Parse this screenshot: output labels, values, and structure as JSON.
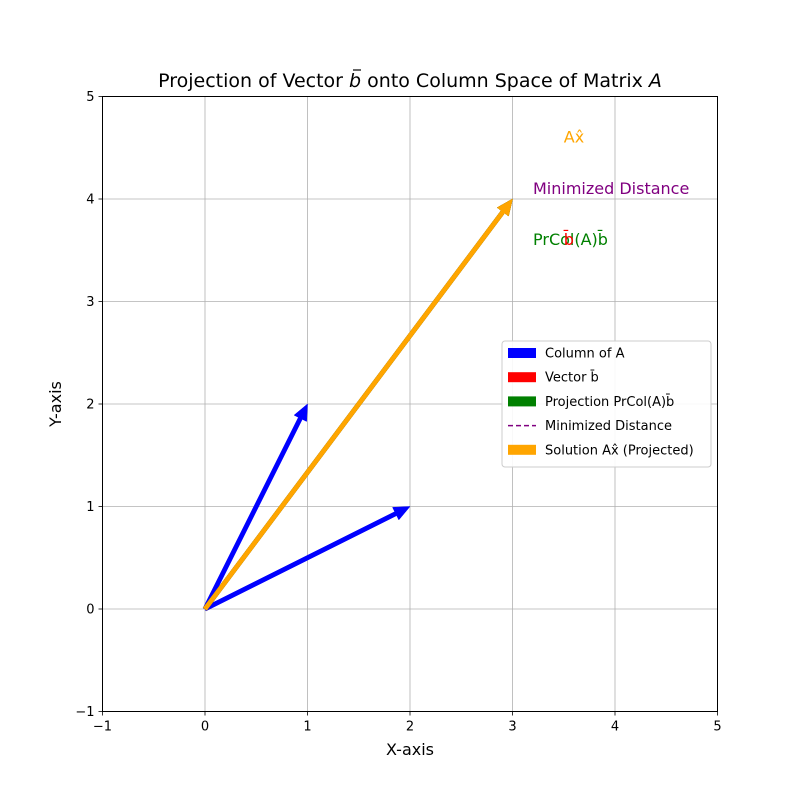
{
  "chart_data": {
    "type": "vector-plot",
    "title": {
      "prefix": "Projection of Vector ",
      "vec": "b",
      "mid": " onto Column Space of Matrix ",
      "mat": "A"
    },
    "xlabel": "X-axis",
    "ylabel": "Y-axis",
    "xlim": [
      -1,
      5
    ],
    "ylim": [
      -1,
      5
    ],
    "xticks": [
      -1,
      0,
      1,
      2,
      3,
      4,
      5
    ],
    "yticks": [
      -1,
      0,
      1,
      2,
      3,
      4,
      5
    ],
    "grid": true,
    "legend_position": "center-right",
    "colors": {
      "column": "#0000ff",
      "vector_b": "#ff0000",
      "projection": "#008000",
      "distance": "#800080",
      "solution": "#ffa500"
    },
    "vectors": [
      {
        "series": "column",
        "from": [
          0,
          0
        ],
        "to": [
          1,
          2
        ]
      },
      {
        "series": "column",
        "from": [
          0,
          0
        ],
        "to": [
          2,
          1
        ]
      },
      {
        "series": "vector_b",
        "from": [
          0,
          0
        ],
        "to": [
          3,
          4
        ]
      },
      {
        "series": "projection",
        "from": [
          0,
          0
        ],
        "to": [
          3,
          4
        ]
      },
      {
        "series": "solution",
        "from": [
          0,
          0
        ],
        "to": [
          3,
          4
        ]
      }
    ],
    "annotations": [
      {
        "series": "solution",
        "at": [
          3.5,
          4.55
        ],
        "text": "Ax̂"
      },
      {
        "series": "distance",
        "at": [
          3.2,
          4.05
        ],
        "text": "Minimized Distance"
      },
      {
        "series": "projection",
        "at": [
          3.2,
          3.55
        ],
        "text": "PrCol(A)b̄"
      },
      {
        "series": "vector_b",
        "at": [
          3.5,
          3.55
        ],
        "text": "b̄"
      }
    ],
    "legend": [
      {
        "series": "column",
        "style": "patch",
        "label": "Column of A"
      },
      {
        "series": "vector_b",
        "style": "patch",
        "label": "Vector b̄"
      },
      {
        "series": "projection",
        "style": "patch",
        "label": "Projection PrCol(A)b̄"
      },
      {
        "series": "distance",
        "style": "dashed",
        "label": "Minimized Distance"
      },
      {
        "series": "solution",
        "style": "patch",
        "label": "Solution Ax̂ (Projected)"
      }
    ]
  }
}
